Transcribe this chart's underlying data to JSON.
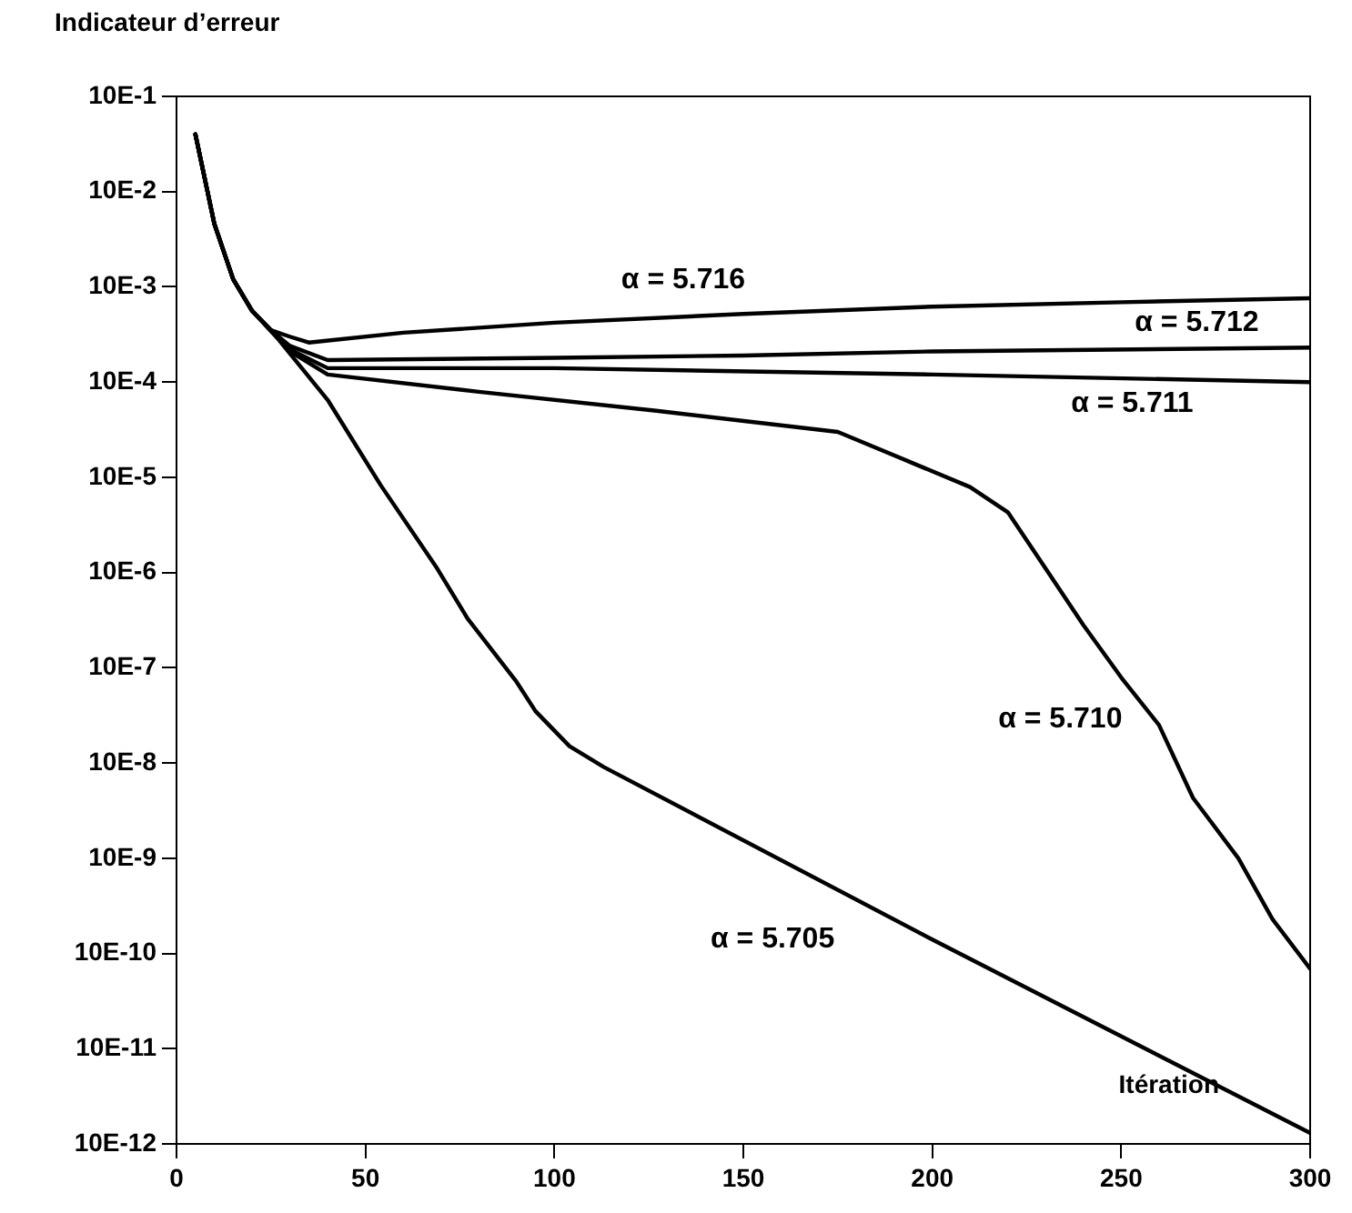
{
  "chart_data": {
    "type": "line",
    "xlabel": "Itération",
    "ylabel": "Indicateur d’erreur",
    "log": "y",
    "grid": false,
    "legend": false,
    "marker": "none",
    "line_style": "solid",
    "xlim": [
      0,
      300
    ],
    "xticks": [
      0,
      50,
      100,
      150,
      200,
      250,
      300
    ],
    "ylim": [
      1e-11,
      1
    ],
    "yticks": [
      {
        "value": 1,
        "label": "10E-1"
      },
      {
        "value": 0.1,
        "label": "10E-2"
      },
      {
        "value": 0.01,
        "label": "10E-3"
      },
      {
        "value": 0.001,
        "label": "10E-4"
      },
      {
        "value": 0.0001,
        "label": "10E-5"
      },
      {
        "value": 1e-05,
        "label": "10E-6"
      },
      {
        "value": 1e-06,
        "label": "10E-7"
      },
      {
        "value": 1e-07,
        "label": "10E-8"
      },
      {
        "value": 1e-08,
        "label": "10E-9"
      },
      {
        "value": 1e-09,
        "label": "10E-10"
      },
      {
        "value": 1e-10,
        "label": "10E-11"
      },
      {
        "value": 1e-11,
        "label": "10E-12"
      }
    ],
    "series": [
      {
        "name": "α = 5.716",
        "color": "#000000",
        "x": [
          5,
          10,
          15,
          20,
          25,
          30,
          35,
          60,
          100,
          150,
          200,
          250,
          300
        ],
        "values": [
          0.4,
          0.046,
          0.012,
          0.0056,
          0.0035,
          0.003,
          0.0026,
          0.0033,
          0.0042,
          0.0052,
          0.0062,
          0.0069,
          0.0076
        ]
      },
      {
        "name": "α = 5.712",
        "color": "#000000",
        "x": [
          5,
          10,
          15,
          20,
          25,
          30,
          40,
          100,
          150,
          200,
          300
        ],
        "values": [
          0.4,
          0.046,
          0.012,
          0.0056,
          0.0035,
          0.0024,
          0.0017,
          0.0018,
          0.0019,
          0.0021,
          0.0023
        ]
      },
      {
        "name": "α = 5.711",
        "color": "#000000",
        "x": [
          5,
          10,
          15,
          20,
          25,
          30,
          40,
          100,
          200,
          300
        ],
        "values": [
          0.4,
          0.046,
          0.012,
          0.0056,
          0.0035,
          0.0022,
          0.0014,
          0.0014,
          0.0012,
          0.001
        ]
      },
      {
        "name": "α = 5.710",
        "color": "#000000",
        "x": [
          5,
          10,
          15,
          20,
          25,
          30,
          40,
          80,
          127,
          175,
          195,
          210,
          220,
          230,
          240,
          250,
          260,
          269,
          281,
          290,
          300
        ],
        "values": [
          0.4,
          0.046,
          0.012,
          0.0056,
          0.0035,
          0.0021,
          0.0012,
          0.00079,
          0.0005,
          0.0003,
          0.00014,
          7.9e-05,
          4.3e-05,
          1.1e-05,
          2.8e-06,
          7.9e-07,
          2.5e-07,
          4.3e-08,
          1e-08,
          2.3e-09,
          6.9e-10
        ]
      },
      {
        "name": "α = 5.705",
        "color": "#000000",
        "x": [
          5,
          10,
          15,
          20,
          27,
          40,
          54,
          69,
          77,
          90,
          95,
          104,
          113,
          200,
          300
        ],
        "values": [
          0.4,
          0.046,
          0.012,
          0.0056,
          0.0028,
          0.00065,
          8.3e-05,
          1.1e-05,
          3.3e-06,
          7.1e-07,
          3.5e-07,
          1.5e-07,
          9.1e-08,
          1.4e-09,
          1.3e-11
        ]
      }
    ]
  }
}
